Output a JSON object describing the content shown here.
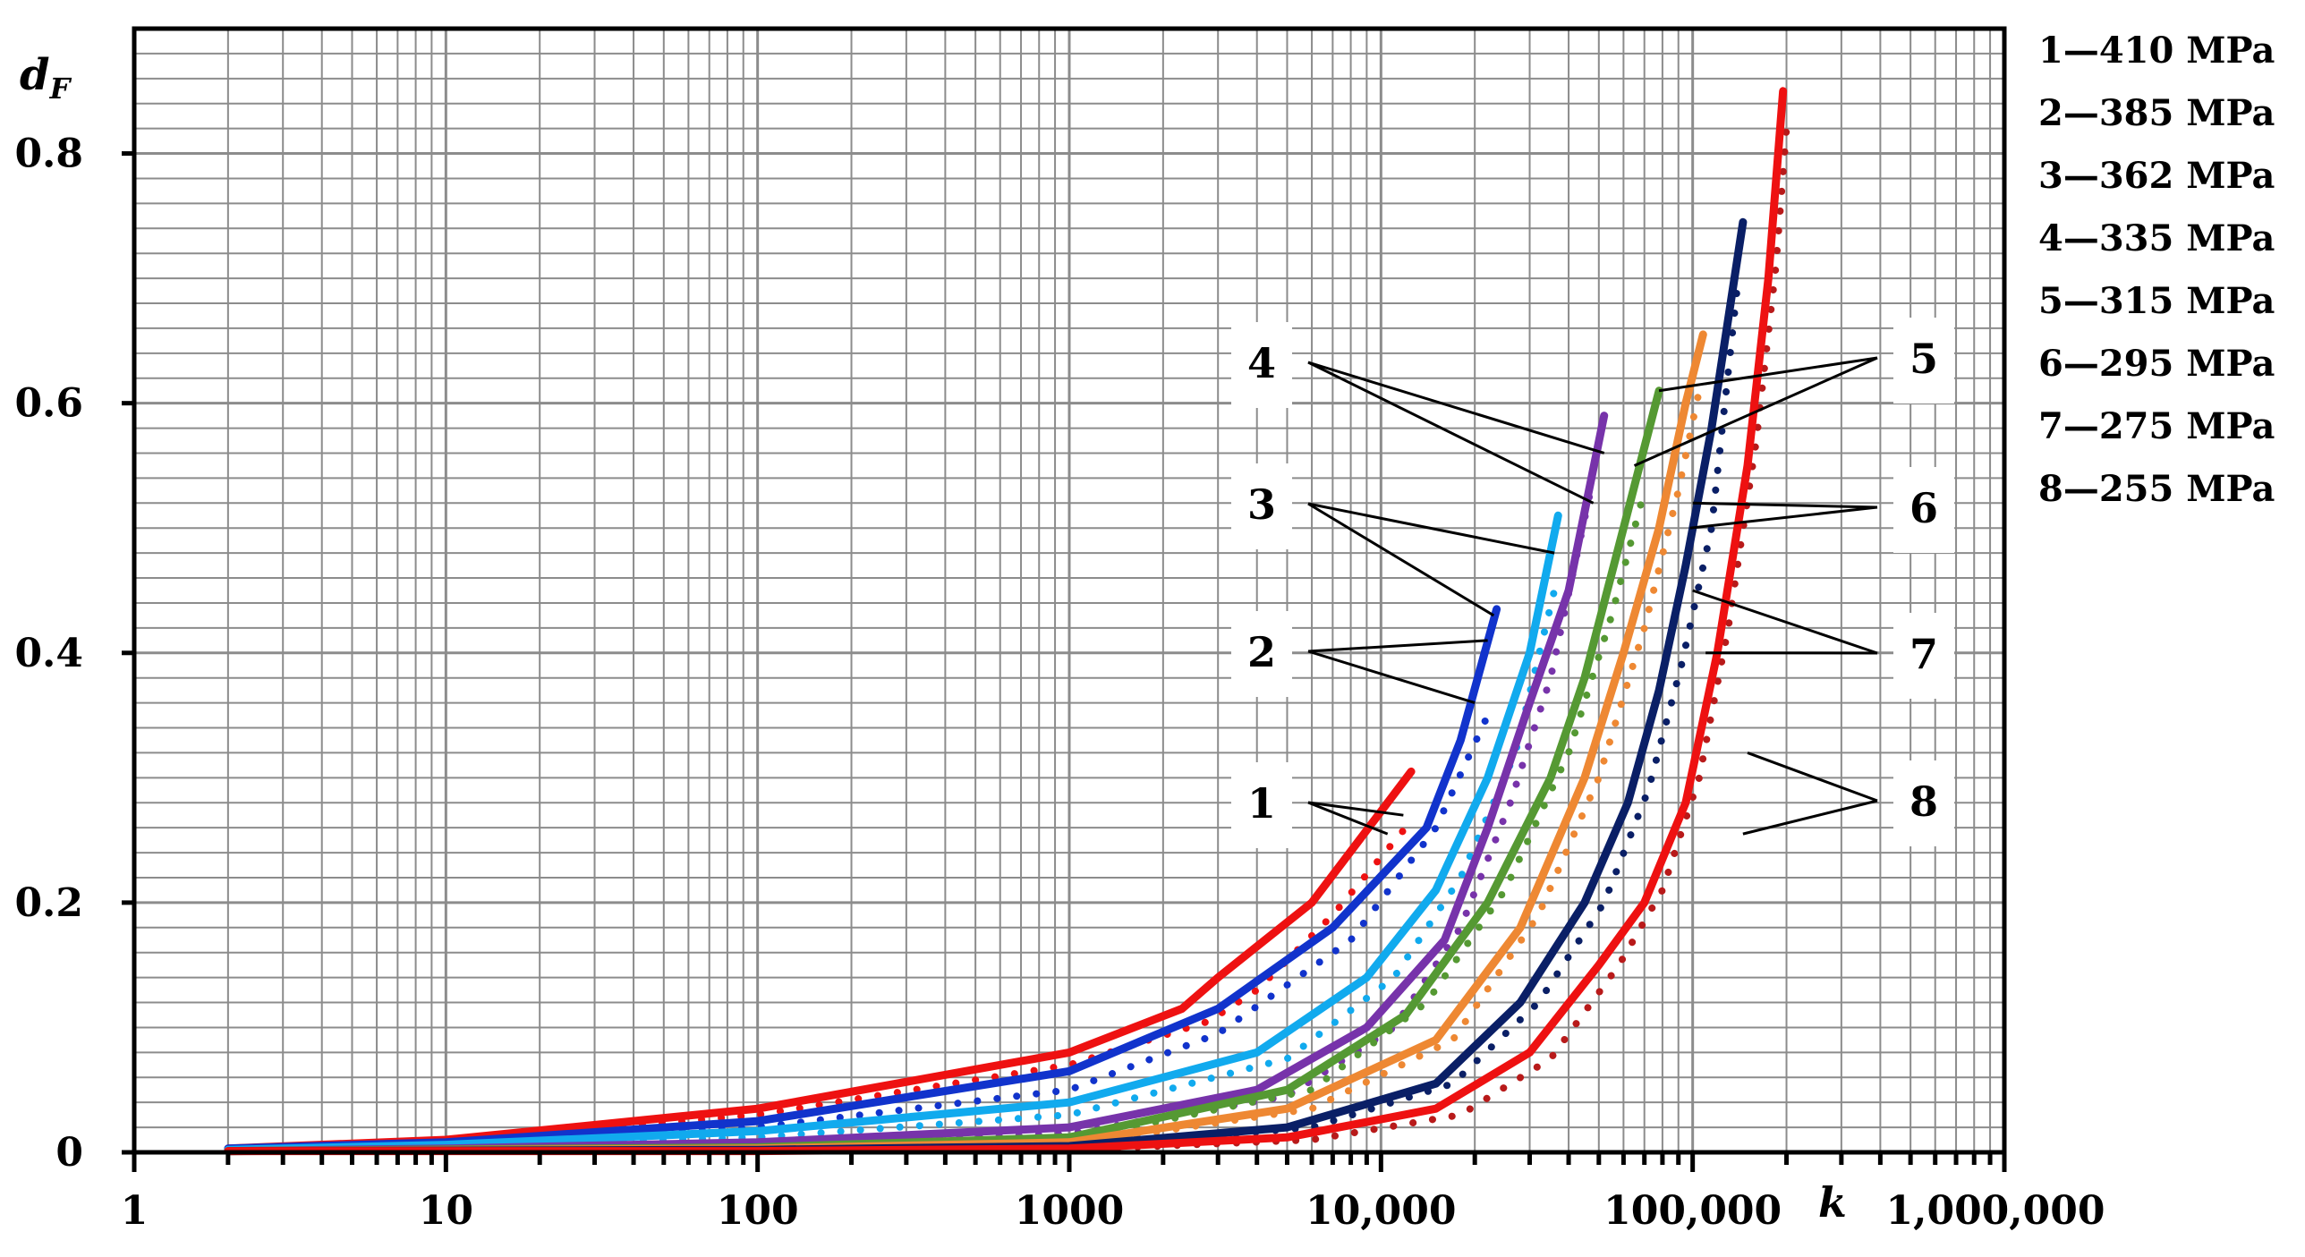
{
  "chart_data": {
    "type": "line",
    "xscale": "log",
    "xlim": [
      1,
      1000000
    ],
    "ylim": [
      0,
      0.9
    ],
    "xlabel": "k",
    "ylabel": "d",
    "ylabel_sub": "F",
    "grid": true,
    "x_tick_labels": [
      {
        "v": 1,
        "label": "1"
      },
      {
        "v": 10,
        "label": "10"
      },
      {
        "v": 100,
        "label": "100"
      },
      {
        "v": 1000,
        "label": "1000"
      },
      {
        "v": 10000,
        "label": "10,000"
      },
      {
        "v": 100000,
        "label": "100,000"
      },
      {
        "v": 1000000,
        "label": "1,000,000"
      }
    ],
    "y_tick_labels": [
      {
        "v": 0,
        "label": "0"
      },
      {
        "v": 0.2,
        "label": "0.2"
      },
      {
        "v": 0.4,
        "label": "0.4"
      },
      {
        "v": 0.6,
        "label": "0.6"
      },
      {
        "v": 0.8,
        "label": "0.8"
      }
    ],
    "legend": [
      {
        "id": "1",
        "text": "1—410 MPa"
      },
      {
        "id": "2",
        "text": "2—385 MPa"
      },
      {
        "id": "3",
        "text": "3—362 MPa"
      },
      {
        "id": "4",
        "text": "4—335 MPa"
      },
      {
        "id": "5",
        "text": "5—315 MPa"
      },
      {
        "id": "6",
        "text": "6—295 MPa"
      },
      {
        "id": "7",
        "text": "7—275 MPa"
      },
      {
        "id": "8",
        "text": "8—255 MPa"
      }
    ],
    "series": [
      {
        "id": "1",
        "stress": "410 MPa",
        "color": "#ee1111",
        "solid": [
          [
            2,
            0.003
          ],
          [
            10,
            0.01
          ],
          [
            100,
            0.035
          ],
          [
            1000,
            0.08
          ],
          [
            2300,
            0.115
          ],
          [
            3000,
            0.14
          ],
          [
            6000,
            0.2
          ],
          [
            12500,
            0.305
          ]
        ],
        "dotted": [
          [
            2,
            0.002
          ],
          [
            10,
            0.008
          ],
          [
            100,
            0.03
          ],
          [
            1000,
            0.07
          ],
          [
            2800,
            0.105
          ],
          [
            4000,
            0.13
          ],
          [
            7000,
            0.19
          ],
          [
            12000,
            0.26
          ]
        ]
      },
      {
        "id": "2",
        "stress": "385 MPa",
        "color": "#1133cc",
        "solid": [
          [
            2,
            0.003
          ],
          [
            10,
            0.008
          ],
          [
            100,
            0.025
          ],
          [
            1000,
            0.065
          ],
          [
            3000,
            0.115
          ],
          [
            7000,
            0.18
          ],
          [
            14000,
            0.26
          ],
          [
            18000,
            0.33
          ],
          [
            23500,
            0.435
          ]
        ],
        "dotted": [
          [
            2,
            0.002
          ],
          [
            10,
            0.006
          ],
          [
            100,
            0.02
          ],
          [
            1000,
            0.05
          ],
          [
            3000,
            0.095
          ],
          [
            8000,
            0.17
          ],
          [
            15000,
            0.26
          ],
          [
            22000,
            0.35
          ]
        ]
      },
      {
        "id": "3",
        "stress": "362 MPa",
        "color": "#11aaee",
        "solid": [
          [
            2,
            0.002
          ],
          [
            10,
            0.006
          ],
          [
            100,
            0.017
          ],
          [
            1000,
            0.04
          ],
          [
            4000,
            0.08
          ],
          [
            9000,
            0.14
          ],
          [
            15000,
            0.21
          ],
          [
            22000,
            0.3
          ],
          [
            30000,
            0.4
          ],
          [
            37000,
            0.51
          ]
        ],
        "dotted": [
          [
            2,
            0.001
          ],
          [
            10,
            0.004
          ],
          [
            100,
            0.012
          ],
          [
            1000,
            0.03
          ],
          [
            5000,
            0.075
          ],
          [
            11000,
            0.14
          ],
          [
            18000,
            0.22
          ],
          [
            27000,
            0.32
          ],
          [
            36000,
            0.45
          ]
        ]
      },
      {
        "id": "4",
        "stress": "335 MPa",
        "color": "#7733aa",
        "solid": [
          [
            2,
            0.001
          ],
          [
            10,
            0.003
          ],
          [
            100,
            0.008
          ],
          [
            1000,
            0.02
          ],
          [
            4000,
            0.05
          ],
          [
            9000,
            0.1
          ],
          [
            16000,
            0.17
          ],
          [
            22000,
            0.26
          ],
          [
            30000,
            0.36
          ],
          [
            40000,
            0.45
          ],
          [
            52000,
            0.59
          ]
        ],
        "dotted": [
          [
            2,
            0.001
          ],
          [
            10,
            0.002
          ],
          [
            100,
            0.006
          ],
          [
            1000,
            0.015
          ],
          [
            5000,
            0.045
          ],
          [
            11000,
            0.1
          ],
          [
            18000,
            0.18
          ],
          [
            26000,
            0.28
          ],
          [
            35000,
            0.38
          ],
          [
            48000,
            0.54
          ]
        ]
      },
      {
        "id": "5",
        "stress": "315 MPa",
        "color": "#559933",
        "solid": [
          [
            2,
            0.001
          ],
          [
            100,
            0.004
          ],
          [
            1000,
            0.012
          ],
          [
            5000,
            0.05
          ],
          [
            12000,
            0.11
          ],
          [
            22000,
            0.2
          ],
          [
            35000,
            0.3
          ],
          [
            45000,
            0.38
          ],
          [
            60000,
            0.5
          ],
          [
            78000,
            0.61
          ]
        ],
        "dotted": [
          [
            2,
            0.001
          ],
          [
            100,
            0.003
          ],
          [
            1000,
            0.01
          ],
          [
            6000,
            0.05
          ],
          [
            14000,
            0.12
          ],
          [
            25000,
            0.21
          ],
          [
            40000,
            0.32
          ],
          [
            55000,
            0.43
          ],
          [
            70000,
            0.53
          ]
        ]
      },
      {
        "id": "6",
        "stress": "295 MPa",
        "color": "#ee8833",
        "solid": [
          [
            2,
            0.001
          ],
          [
            100,
            0.003
          ],
          [
            1000,
            0.008
          ],
          [
            5000,
            0.035
          ],
          [
            15000,
            0.09
          ],
          [
            28000,
            0.18
          ],
          [
            45000,
            0.3
          ],
          [
            60000,
            0.4
          ],
          [
            78000,
            0.5
          ],
          [
            95000,
            0.6
          ],
          [
            108000,
            0.655
          ]
        ],
        "dotted": [
          [
            2,
            0.001
          ],
          [
            100,
            0.002
          ],
          [
            1000,
            0.006
          ],
          [
            6000,
            0.035
          ],
          [
            17000,
            0.09
          ],
          [
            32000,
            0.19
          ],
          [
            50000,
            0.3
          ],
          [
            70000,
            0.42
          ],
          [
            90000,
            0.53
          ],
          [
            105000,
            0.61
          ]
        ]
      },
      {
        "id": "7",
        "stress": "275 MPa",
        "color": "#0a1f66",
        "solid": [
          [
            2,
            0.001
          ],
          [
            100,
            0.002
          ],
          [
            1000,
            0.005
          ],
          [
            5000,
            0.02
          ],
          [
            15000,
            0.055
          ],
          [
            28000,
            0.12
          ],
          [
            45000,
            0.2
          ],
          [
            62000,
            0.28
          ],
          [
            78000,
            0.37
          ],
          [
            95000,
            0.47
          ],
          [
            115000,
            0.58
          ],
          [
            145000,
            0.745
          ]
        ],
        "dotted": [
          [
            2,
            0.001
          ],
          [
            100,
            0.001
          ],
          [
            1000,
            0.004
          ],
          [
            6000,
            0.02
          ],
          [
            17000,
            0.055
          ],
          [
            32000,
            0.12
          ],
          [
            52000,
            0.2
          ],
          [
            72000,
            0.29
          ],
          [
            92000,
            0.39
          ],
          [
            115000,
            0.5
          ],
          [
            140000,
            0.7
          ]
        ]
      },
      {
        "id": "8",
        "stress": "255 MPa",
        "color": "#ee1111",
        "dotted_color": "#b81a1a",
        "solid": [
          [
            2,
            0.001
          ],
          [
            100,
            0.001
          ],
          [
            1000,
            0.003
          ],
          [
            5000,
            0.012
          ],
          [
            15000,
            0.035
          ],
          [
            30000,
            0.08
          ],
          [
            50000,
            0.15
          ],
          [
            70000,
            0.2
          ],
          [
            95000,
            0.28
          ],
          [
            120000,
            0.4
          ],
          [
            150000,
            0.55
          ],
          [
            175000,
            0.7
          ],
          [
            195000,
            0.85
          ]
        ],
        "dotted": [
          [
            2,
            0.001
          ],
          [
            100,
            0.001
          ],
          [
            1000,
            0.002
          ],
          [
            6000,
            0.01
          ],
          [
            18000,
            0.03
          ],
          [
            35000,
            0.075
          ],
          [
            58000,
            0.15
          ],
          [
            80000,
            0.21
          ],
          [
            105000,
            0.3
          ],
          [
            130000,
            0.42
          ],
          [
            160000,
            0.57
          ],
          [
            185000,
            0.71
          ],
          [
            200000,
            0.82
          ]
        ]
      }
    ],
    "callouts": [
      {
        "label": "4",
        "side": "left",
        "targets": [
          [
            52000,
            0.56
          ],
          [
            48000,
            0.52
          ]
        ]
      },
      {
        "label": "3",
        "side": "left",
        "targets": [
          [
            36000,
            0.48
          ],
          [
            23000,
            0.43
          ]
        ]
      },
      {
        "label": "2",
        "side": "left",
        "targets": [
          [
            22000,
            0.41
          ],
          [
            20000,
            0.36
          ]
        ]
      },
      {
        "label": "1",
        "side": "left",
        "targets": [
          [
            11800,
            0.27
          ],
          [
            10500,
            0.255
          ]
        ]
      },
      {
        "label": "5",
        "side": "right",
        "targets": [
          [
            78000,
            0.61
          ],
          [
            65000,
            0.55
          ]
        ]
      },
      {
        "label": "6",
        "side": "right",
        "targets": [
          [
            100000,
            0.52
          ],
          [
            98000,
            0.5
          ]
        ]
      },
      {
        "label": "7",
        "side": "right",
        "targets": [
          [
            100000,
            0.45
          ],
          [
            110000,
            0.4
          ]
        ]
      },
      {
        "label": "8",
        "side": "right",
        "targets": [
          [
            150000,
            0.32
          ],
          [
            145000,
            0.255
          ]
        ]
      }
    ]
  }
}
